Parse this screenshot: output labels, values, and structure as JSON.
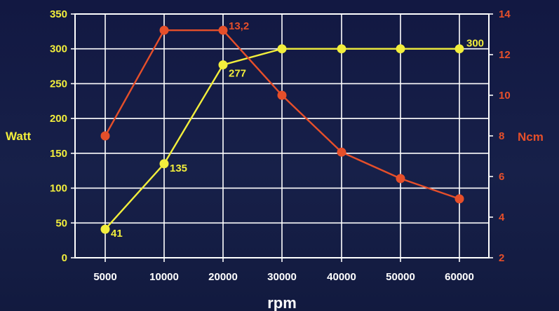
{
  "chart_data": {
    "type": "line",
    "categories": [
      "5000",
      "10000",
      "20000",
      "30000",
      "40000",
      "50000",
      "60000"
    ],
    "xlabel": "rpm",
    "y_left": {
      "label": "Watt",
      "ylim": [
        0,
        350
      ],
      "ticks": [
        "0",
        "50",
        "100",
        "150",
        "200",
        "250",
        "300",
        "350"
      ]
    },
    "y_right": {
      "label": "Ncm",
      "ylim": [
        2,
        14
      ],
      "ticks": [
        "2",
        "4",
        "6",
        "8",
        "10",
        "12",
        "14"
      ]
    },
    "series": [
      {
        "axis": "left",
        "color": "#f2ee3c",
        "values": [
          41,
          135,
          277,
          300,
          300,
          300,
          300
        ],
        "data_labels": [
          "41",
          "135",
          "277",
          "",
          "",
          "",
          "300"
        ]
      },
      {
        "axis": "right",
        "color": "#e64f2a",
        "values": [
          8,
          13.2,
          13.2,
          10,
          7.2,
          5.9,
          4.9
        ],
        "data_labels": [
          "",
          "",
          "13,2",
          "",
          "",
          "",
          ""
        ]
      }
    ],
    "grid": true
  }
}
